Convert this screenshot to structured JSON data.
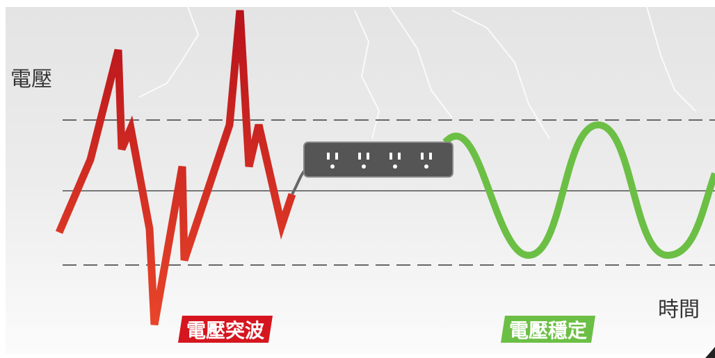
{
  "axis": {
    "y_label": "電壓",
    "x_label": "時間"
  },
  "labels": {
    "surge": "電壓突波",
    "stable": "電壓穩定"
  }
}
